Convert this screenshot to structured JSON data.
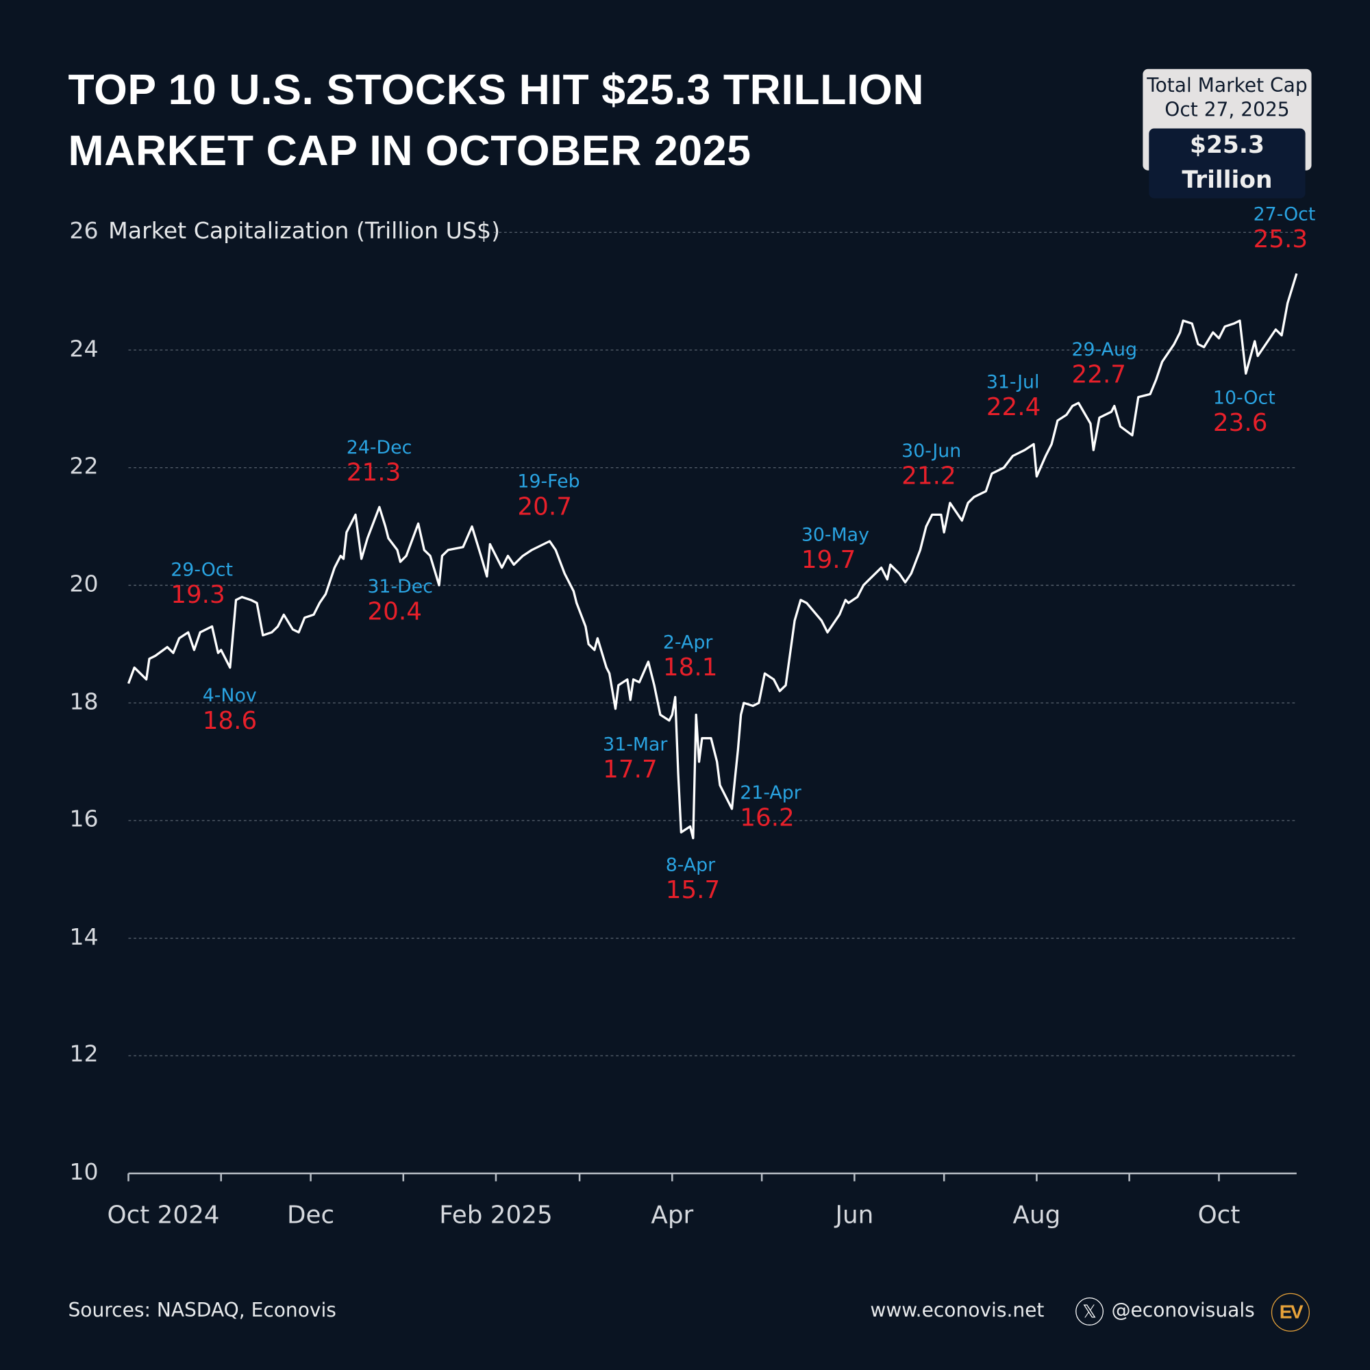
{
  "title_lines": [
    "TOP 10 U.S. STOCKS HIT $25.3 TRILLION",
    "MARKET CAP IN OCTOBER 2025"
  ],
  "callout": {
    "line1": "Total Market Cap",
    "line2": "Oct 27, 2025",
    "value": "$25.3 Trillion"
  },
  "colors": {
    "background": "#0a1422",
    "line": "#ffffff",
    "date_label": "#2aa4e2",
    "value_label": "#e8202a",
    "logo": "#e8a33a"
  },
  "chart_data": {
    "type": "line",
    "title": "TOP 10 U.S. STOCKS HIT $25.3 TRILLION MARKET CAP IN OCTOBER 2025",
    "ylabel": "Market Capitalization (Trillion US$)",
    "ylim": [
      10,
      26
    ],
    "yticks": [
      10,
      12,
      14,
      16,
      18,
      20,
      22,
      24,
      26
    ],
    "xlim": [
      "2024-10-01",
      "2025-10-27"
    ],
    "xticks": [
      "2024-10-01",
      "2024-11-01",
      "2024-12-01",
      "2025-01-01",
      "2025-02-01",
      "2025-03-01",
      "2025-04-01",
      "2025-05-01",
      "2025-06-01",
      "2025-07-01",
      "2025-08-01",
      "2025-09-01",
      "2025-10-01"
    ],
    "xtick_labels": [
      "Oct 2024",
      "",
      "Dec",
      "",
      "Feb 2025",
      "",
      "Apr",
      "",
      "Jun",
      "",
      "Aug",
      "",
      "Oct"
    ],
    "grid": true,
    "series": [
      {
        "points": [
          [
            "2024-10-01",
            18.33
          ],
          [
            "2024-10-03",
            18.6
          ],
          [
            "2024-10-07",
            18.4
          ],
          [
            "2024-10-08",
            18.75
          ],
          [
            "2024-10-10",
            18.8
          ],
          [
            "2024-10-14",
            18.95
          ],
          [
            "2024-10-16",
            18.85
          ],
          [
            "2024-10-18",
            19.1
          ],
          [
            "2024-10-21",
            19.2
          ],
          [
            "2024-10-23",
            18.9
          ],
          [
            "2024-10-25",
            19.2
          ],
          [
            "2024-10-29",
            19.3
          ],
          [
            "2024-10-31",
            18.85
          ],
          [
            "2024-11-01",
            18.9
          ],
          [
            "2024-11-04",
            18.6
          ],
          [
            "2024-11-06",
            19.75
          ],
          [
            "2024-11-08",
            19.8
          ],
          [
            "2024-11-11",
            19.75
          ],
          [
            "2024-11-13",
            19.7
          ],
          [
            "2024-11-15",
            19.15
          ],
          [
            "2024-11-18",
            19.2
          ],
          [
            "2024-11-20",
            19.3
          ],
          [
            "2024-11-22",
            19.5
          ],
          [
            "2024-11-25",
            19.25
          ],
          [
            "2024-11-27",
            19.2
          ],
          [
            "2024-11-29",
            19.45
          ],
          [
            "2024-12-02",
            19.5
          ],
          [
            "2024-12-04",
            19.7
          ],
          [
            "2024-12-06",
            19.85
          ],
          [
            "2024-12-09",
            20.3
          ],
          [
            "2024-12-11",
            20.5
          ],
          [
            "2024-12-12",
            20.45
          ],
          [
            "2024-12-13",
            20.9
          ],
          [
            "2024-12-16",
            21.2
          ],
          [
            "2024-12-18",
            20.45
          ],
          [
            "2024-12-20",
            20.8
          ],
          [
            "2024-12-24",
            21.33
          ],
          [
            "2024-12-26",
            21.0
          ],
          [
            "2024-12-27",
            20.8
          ],
          [
            "2024-12-30",
            20.6
          ],
          [
            "2024-12-31",
            20.4
          ],
          [
            "2025-01-02",
            20.5
          ],
          [
            "2025-01-06",
            21.05
          ],
          [
            "2025-01-08",
            20.6
          ],
          [
            "2025-01-10",
            20.5
          ],
          [
            "2025-01-13",
            20.0
          ],
          [
            "2025-01-14",
            20.5
          ],
          [
            "2025-01-16",
            20.6
          ],
          [
            "2025-01-21",
            20.65
          ],
          [
            "2025-01-24",
            21.0
          ],
          [
            "2025-01-27",
            20.5
          ],
          [
            "2025-01-29",
            20.15
          ],
          [
            "2025-01-30",
            20.7
          ],
          [
            "2025-02-03",
            20.3
          ],
          [
            "2025-02-05",
            20.5
          ],
          [
            "2025-02-07",
            20.35
          ],
          [
            "2025-02-10",
            20.5
          ],
          [
            "2025-02-13",
            20.6
          ],
          [
            "2025-02-19",
            20.75
          ],
          [
            "2025-02-21",
            20.6
          ],
          [
            "2025-02-24",
            20.2
          ],
          [
            "2025-02-27",
            19.9
          ],
          [
            "2025-02-28",
            19.7
          ],
          [
            "2025-03-03",
            19.3
          ],
          [
            "2025-03-04",
            19.0
          ],
          [
            "2025-03-06",
            18.9
          ],
          [
            "2025-03-07",
            19.1
          ],
          [
            "2025-03-10",
            18.6
          ],
          [
            "2025-03-11",
            18.5
          ],
          [
            "2025-03-13",
            17.9
          ],
          [
            "2025-03-14",
            18.3
          ],
          [
            "2025-03-17",
            18.4
          ],
          [
            "2025-03-18",
            18.05
          ],
          [
            "2025-03-19",
            18.4
          ],
          [
            "2025-03-21",
            18.35
          ],
          [
            "2025-03-24",
            18.7
          ],
          [
            "2025-03-26",
            18.3
          ],
          [
            "2025-03-28",
            17.8
          ],
          [
            "2025-03-31",
            17.7
          ],
          [
            "2025-04-01",
            17.8
          ],
          [
            "2025-04-02",
            18.1
          ],
          [
            "2025-04-03",
            16.8
          ],
          [
            "2025-04-04",
            15.8
          ],
          [
            "2025-04-07",
            15.9
          ],
          [
            "2025-04-08",
            15.7
          ],
          [
            "2025-04-09",
            17.8
          ],
          [
            "2025-04-10",
            17.0
          ],
          [
            "2025-04-11",
            17.4
          ],
          [
            "2025-04-14",
            17.4
          ],
          [
            "2025-04-16",
            17.0
          ],
          [
            "2025-04-17",
            16.6
          ],
          [
            "2025-04-21",
            16.2
          ],
          [
            "2025-04-22",
            16.7
          ],
          [
            "2025-04-23",
            17.2
          ],
          [
            "2025-04-24",
            17.8
          ],
          [
            "2025-04-25",
            18.0
          ],
          [
            "2025-04-28",
            17.95
          ],
          [
            "2025-04-30",
            18.0
          ],
          [
            "2025-05-02",
            18.5
          ],
          [
            "2025-05-05",
            18.4
          ],
          [
            "2025-05-07",
            18.2
          ],
          [
            "2025-05-09",
            18.3
          ],
          [
            "2025-05-12",
            19.4
          ],
          [
            "2025-05-14",
            19.75
          ],
          [
            "2025-05-16",
            19.7
          ],
          [
            "2025-05-21",
            19.4
          ],
          [
            "2025-05-23",
            19.2
          ],
          [
            "2025-05-27",
            19.5
          ],
          [
            "2025-05-29",
            19.75
          ],
          [
            "2025-05-30",
            19.7
          ],
          [
            "2025-06-02",
            19.8
          ],
          [
            "2025-06-04",
            20.0
          ],
          [
            "2025-06-06",
            20.1
          ],
          [
            "2025-06-10",
            20.3
          ],
          [
            "2025-06-12",
            20.1
          ],
          [
            "2025-06-13",
            20.35
          ],
          [
            "2025-06-16",
            20.2
          ],
          [
            "2025-06-18",
            20.05
          ],
          [
            "2025-06-20",
            20.2
          ],
          [
            "2025-06-23",
            20.6
          ],
          [
            "2025-06-25",
            21.0
          ],
          [
            "2025-06-27",
            21.2
          ],
          [
            "2025-06-30",
            21.2
          ],
          [
            "2025-07-01",
            20.9
          ],
          [
            "2025-07-03",
            21.4
          ],
          [
            "2025-07-07",
            21.1
          ],
          [
            "2025-07-09",
            21.4
          ],
          [
            "2025-07-11",
            21.5
          ],
          [
            "2025-07-15",
            21.6
          ],
          [
            "2025-07-17",
            21.9
          ],
          [
            "2025-07-21",
            22.0
          ],
          [
            "2025-07-24",
            22.2
          ],
          [
            "2025-07-28",
            22.3
          ],
          [
            "2025-07-31",
            22.4
          ],
          [
            "2025-08-01",
            21.85
          ],
          [
            "2025-08-04",
            22.2
          ],
          [
            "2025-08-06",
            22.4
          ],
          [
            "2025-08-08",
            22.8
          ],
          [
            "2025-08-11",
            22.9
          ],
          [
            "2025-08-13",
            23.05
          ],
          [
            "2025-08-15",
            23.1
          ],
          [
            "2025-08-19",
            22.75
          ],
          [
            "2025-08-20",
            22.3
          ],
          [
            "2025-08-22",
            22.85
          ],
          [
            "2025-08-26",
            22.95
          ],
          [
            "2025-08-27",
            23.05
          ],
          [
            "2025-08-29",
            22.7
          ],
          [
            "2025-09-02",
            22.55
          ],
          [
            "2025-09-04",
            23.2
          ],
          [
            "2025-09-08",
            23.25
          ],
          [
            "2025-09-10",
            23.5
          ],
          [
            "2025-09-12",
            23.8
          ],
          [
            "2025-09-16",
            24.1
          ],
          [
            "2025-09-18",
            24.3
          ],
          [
            "2025-09-19",
            24.5
          ],
          [
            "2025-09-22",
            24.45
          ],
          [
            "2025-09-24",
            24.1
          ],
          [
            "2025-09-26",
            24.05
          ],
          [
            "2025-09-29",
            24.3
          ],
          [
            "2025-10-01",
            24.2
          ],
          [
            "2025-10-03",
            24.4
          ],
          [
            "2025-10-06",
            24.45
          ],
          [
            "2025-10-08",
            24.5
          ],
          [
            "2025-10-10",
            23.6
          ],
          [
            "2025-10-13",
            24.15
          ],
          [
            "2025-10-14",
            23.9
          ],
          [
            "2025-10-16",
            24.05
          ],
          [
            "2025-10-20",
            24.35
          ],
          [
            "2025-10-22",
            24.25
          ],
          [
            "2025-10-24",
            24.8
          ],
          [
            "2025-10-27",
            25.3
          ]
        ]
      }
    ],
    "annotations": [
      {
        "date": "29-Oct",
        "value": "19.3"
      },
      {
        "date": "4-Nov",
        "value": "18.6"
      },
      {
        "date": "24-Dec",
        "value": "21.3"
      },
      {
        "date": "31-Dec",
        "value": "20.4"
      },
      {
        "date": "19-Feb",
        "value": "20.7"
      },
      {
        "date": "31-Mar",
        "value": "17.7"
      },
      {
        "date": "2-Apr",
        "value": "18.1"
      },
      {
        "date": "8-Apr",
        "value": "15.7"
      },
      {
        "date": "21-Apr",
        "value": "16.2"
      },
      {
        "date": "30-May",
        "value": "19.7"
      },
      {
        "date": "30-Jun",
        "value": "21.2"
      },
      {
        "date": "31-Jul",
        "value": "22.4"
      },
      {
        "date": "29-Aug",
        "value": "22.7"
      },
      {
        "date": "10-Oct",
        "value": "23.6"
      },
      {
        "date": "27-Oct",
        "value": "25.3"
      }
    ]
  },
  "footer": {
    "sources": "Sources: NASDAQ, Econovis",
    "website": "www.econovis.net",
    "handle": "@econovisuals",
    "x_icon": "x-logo-icon",
    "logo": "EV"
  }
}
